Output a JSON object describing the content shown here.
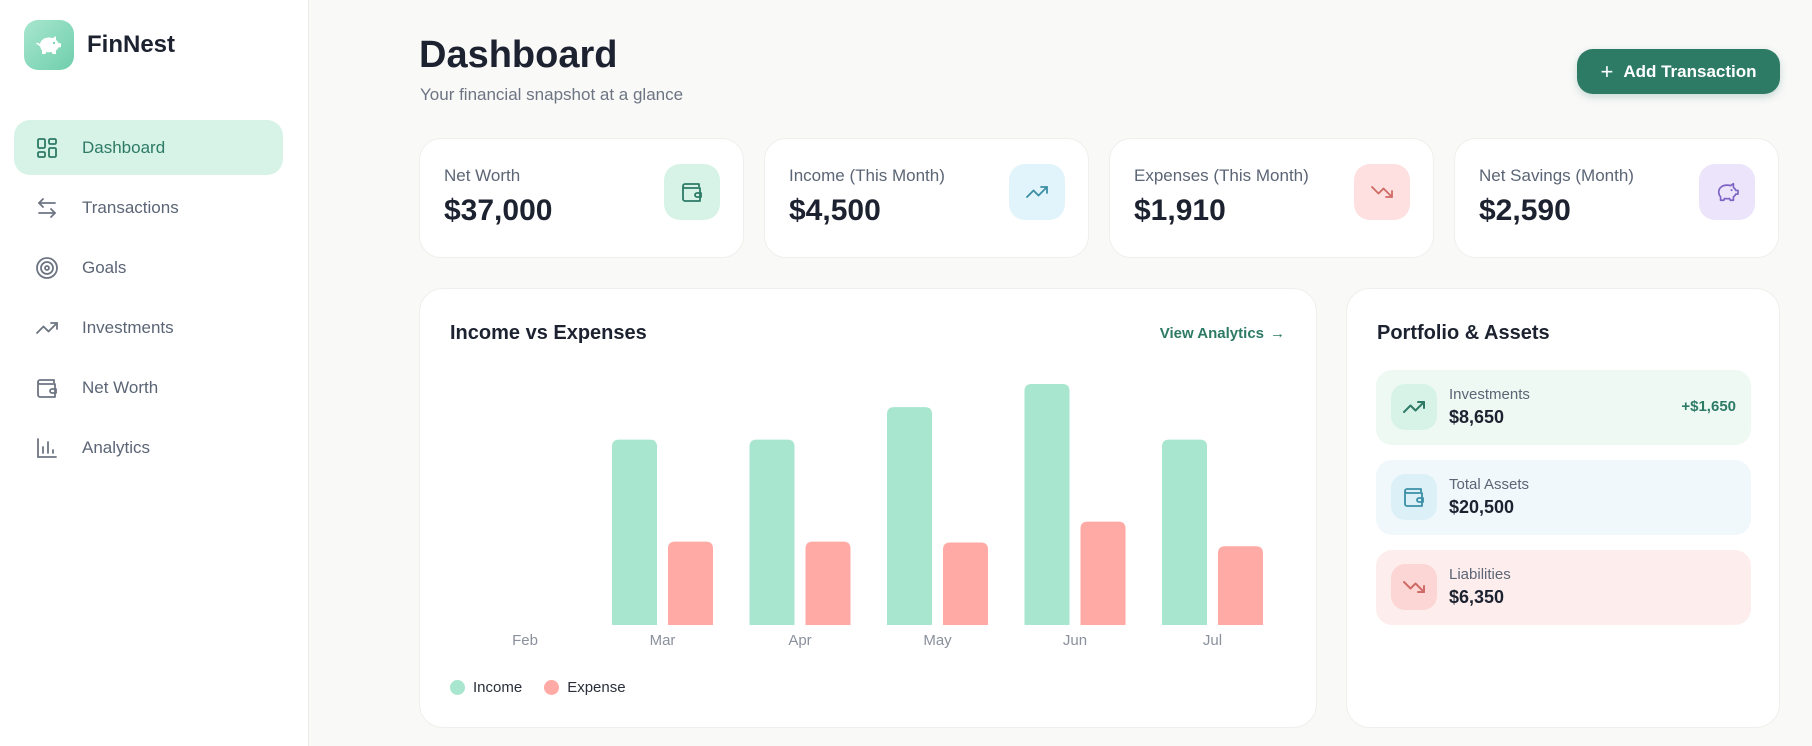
{
  "brand": {
    "name": "FinNest"
  },
  "sidebar": {
    "items": [
      {
        "label": "Dashboard",
        "icon": "dashboard-icon",
        "active": true
      },
      {
        "label": "Transactions",
        "icon": "transfer-arrows-icon",
        "active": false
      },
      {
        "label": "Goals",
        "icon": "target-icon",
        "active": false
      },
      {
        "label": "Investments",
        "icon": "trending-up-icon",
        "active": false
      },
      {
        "label": "Net Worth",
        "icon": "wallet-icon",
        "active": false
      },
      {
        "label": "Analytics",
        "icon": "bar-chart-icon",
        "active": false
      }
    ]
  },
  "header": {
    "title": "Dashboard",
    "subtitle": "Your financial snapshot at a glance",
    "add_button": "Add Transaction"
  },
  "stats": [
    {
      "label": "Net Worth",
      "value": "$37,000",
      "icon": "wallet-icon",
      "color": "#d7f3e8"
    },
    {
      "label": "Income (This Month)",
      "value": "$4,500",
      "icon": "trending-up-icon",
      "color": "#e1f3fb"
    },
    {
      "label": "Expenses (This Month)",
      "value": "$1,910",
      "icon": "trending-down-icon",
      "color": "#fde0df"
    },
    {
      "label": "Net Savings (Month)",
      "value": "$2,590",
      "icon": "piggy-bank-icon",
      "color": "#ebe4fa"
    }
  ],
  "chart_card": {
    "title": "Income vs Expenses",
    "link": "View Analytics"
  },
  "chart_data": {
    "type": "bar",
    "categories": [
      "Feb",
      "Mar",
      "Apr",
      "May",
      "Jun",
      "Jul"
    ],
    "series": [
      {
        "name": "Income",
        "values": [
          0,
          4000,
          4000,
          4700,
          5200,
          4000
        ],
        "color": "#a8e6cf"
      },
      {
        "name": "Expense",
        "values": [
          0,
          1800,
          1800,
          1780,
          2230,
          1700
        ],
        "color": "#ffaaa5"
      }
    ],
    "ylim": [
      0,
      5200
    ],
    "grid": false,
    "legend": "bottom-left"
  },
  "portfolio": {
    "title": "Portfolio & Assets",
    "items": [
      {
        "label": "Investments",
        "value": "$8,650",
        "change": "+$1,650",
        "icon": "trending-up-icon",
        "bg": "#eef9f4",
        "icon_bg": "#d7f3e8"
      },
      {
        "label": "Total Assets",
        "value": "$20,500",
        "change": "",
        "icon": "wallet-icon",
        "bg": "#f0f8fc",
        "icon_bg": "#dcf0f8"
      },
      {
        "label": "Liabilities",
        "value": "$6,350",
        "change": "",
        "icon": "trending-down-icon",
        "bg": "#fdeeed",
        "icon_bg": "#fbd6d4"
      }
    ]
  }
}
